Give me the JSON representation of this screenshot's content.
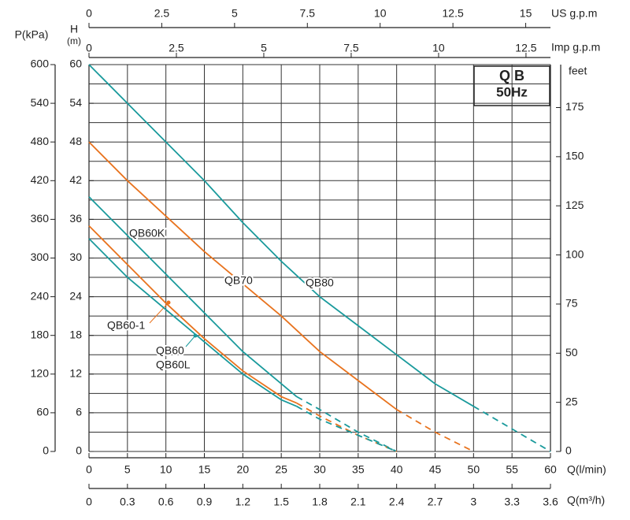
{
  "chart_data": {
    "type": "line",
    "title": "Q B",
    "subtitle": "50Hz",
    "x_label": "Q(l/min)",
    "xlim": [
      0,
      60
    ],
    "xticks": [
      0,
      5,
      10,
      15,
      20,
      25,
      30,
      35,
      40,
      45,
      50,
      55,
      60
    ],
    "x2_label": "Q(m³/h)",
    "x2lim": [
      0,
      3.6
    ],
    "x2ticks": [
      0,
      0.3,
      0.6,
      0.9,
      1.2,
      1.5,
      1.8,
      2.1,
      2.4,
      2.7,
      3,
      3.3,
      3.6
    ],
    "x3_label": "US  g.p.m",
    "x3lim": [
      0,
      15.85
    ],
    "x3ticks": [
      0,
      2.5,
      5,
      7.5,
      10,
      12.5,
      15
    ],
    "x4_label": "Imp  g.p.m",
    "x4lim": [
      0,
      13.2
    ],
    "x4ticks": [
      0,
      2.5,
      5,
      7.5,
      10,
      12.5
    ],
    "y_label": "H",
    "y_unit": "(m)",
    "ylim": [
      0,
      60
    ],
    "yticks": [
      0,
      6,
      12,
      18,
      24,
      30,
      36,
      42,
      48,
      54,
      60
    ],
    "ygrid": [
      0,
      3,
      6,
      9,
      12,
      15,
      18,
      21,
      24,
      27,
      30,
      33,
      36,
      39,
      42,
      45,
      48,
      51,
      54,
      57,
      60
    ],
    "y2_label": "P(kPa)",
    "y2lim": [
      0,
      600
    ],
    "y2ticks": [
      0,
      60,
      120,
      180,
      240,
      300,
      360,
      420,
      480,
      540,
      600
    ],
    "y3_label": "feet",
    "y3lim": [
      0,
      196.85
    ],
    "y3ticks": [
      0,
      25,
      50,
      75,
      100,
      125,
      150,
      175
    ],
    "grid": true,
    "series": [
      {
        "labels": [
          "QB80"
        ],
        "color": "#1a9a9c",
        "x": [
          0,
          5,
          10,
          15,
          20,
          25,
          30,
          35,
          40,
          45,
          50
        ],
        "values": [
          60,
          54,
          48,
          42,
          35.5,
          29.5,
          24,
          19.5,
          15,
          10.5,
          7
        ],
        "dashed_x": [
          50,
          55,
          60
        ],
        "dashed_values": [
          7,
          3.5,
          0
        ]
      },
      {
        "labels": [
          "QB70"
        ],
        "color": "#e8731e",
        "x": [
          0,
          5,
          10,
          15,
          20,
          25,
          30,
          35,
          40
        ],
        "values": [
          48,
          42,
          36.5,
          31,
          26,
          21,
          15.5,
          11,
          6.5
        ],
        "dashed_x": [
          40,
          45,
          50
        ],
        "dashed_values": [
          6.5,
          3,
          0
        ]
      },
      {
        "labels": [
          "QB60K"
        ],
        "color": "#1a9a9c",
        "x": [
          0,
          5,
          10,
          15,
          20,
          25,
          27
        ],
        "values": [
          39.5,
          33.5,
          27.5,
          21.5,
          15.5,
          10.5,
          8.5
        ],
        "dashed_x": [
          27,
          30,
          35,
          40
        ],
        "dashed_values": [
          8.5,
          6.5,
          3,
          0
        ]
      },
      {
        "labels": [
          "QB60-1"
        ],
        "color": "#e8731e",
        "x": [
          0,
          5,
          10,
          15,
          20,
          25,
          27
        ],
        "values": [
          35,
          29,
          23,
          17.5,
          12.5,
          8.5,
          7.5
        ],
        "dashed_x": [
          27,
          30,
          35,
          40
        ],
        "dashed_values": [
          7.5,
          5.5,
          2.5,
          0
        ]
      },
      {
        "labels": [
          "QB60",
          "QB60L"
        ],
        "color": "#1a9a9c",
        "x": [
          0,
          5,
          10,
          15,
          20,
          25,
          27
        ],
        "values": [
          33,
          27,
          22,
          17,
          12,
          8,
          7
        ],
        "dashed_x": [
          27,
          30,
          35,
          40
        ],
        "dashed_values": [
          7,
          5,
          2.5,
          0
        ]
      }
    ]
  }
}
